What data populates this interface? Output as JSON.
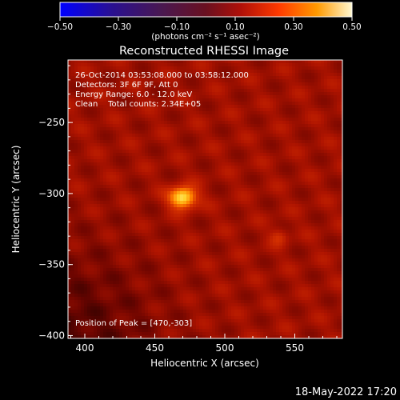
{
  "chart_data": {
    "type": "heatmap",
    "title": "Reconstructed RHESSI Image",
    "xlabel": "Heliocentric X (arcsec)",
    "ylabel": "Heliocentric Y (arcsec)",
    "xlim": [
      388,
      584
    ],
    "ylim": [
      -402,
      -206
    ],
    "xticks": [
      400,
      450,
      500,
      550
    ],
    "yticks": [
      -250,
      -300,
      -350,
      -400
    ],
    "colorbar": {
      "range": [
        -0.5,
        0.5
      ],
      "ticks": [
        "-0.50",
        "-0.30",
        "-0.10",
        "0.10",
        "0.30",
        "0.50"
      ],
      "units_line": "(photons cm⁻² s⁻¹ asec⁻²)",
      "colormap": "red-temperature",
      "orientation": "horizontal",
      "placement": "top"
    },
    "background_level": 0.17,
    "sources": [
      {
        "x": 470,
        "y": -303,
        "peak": 0.5,
        "sigma_x": 7,
        "sigma_y": 5.5
      },
      {
        "x": 539,
        "y": -330,
        "peak": 0.26,
        "sigma_x": 4.5,
        "sigma_y": 4.5
      }
    ],
    "annotations": [
      "26-Oct-2014 03:53:08.000 to 03:58:12.000",
      "Detectors: 3F 6F 9F, Att 0",
      "Energy Range: 6.0 - 12.0 keV",
      "Clean    Total counts: 2.34E+05"
    ],
    "peak_label": "Position of Peak = [470,-303]",
    "footer_date": "18-May-2022 17:20"
  }
}
